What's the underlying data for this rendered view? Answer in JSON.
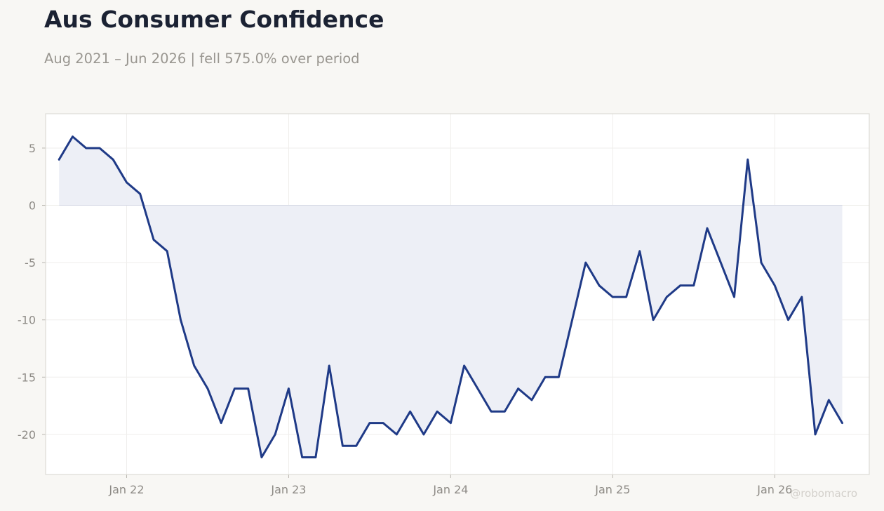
{
  "header": {
    "title": "Aus Consumer Confidence",
    "subtitle": "Aug 2021 – Jun 2026 | fell 575.0% over period"
  },
  "watermark": "@robomacro",
  "colors": {
    "background": "#f8f7f4",
    "plot_background": "#ffffff",
    "line": "#1f3a87",
    "fill": "#eceef5",
    "grid": "#efeeeb",
    "frame": "#dddbd5"
  },
  "chart_data": {
    "type": "area",
    "title": "Aus Consumer Confidence",
    "subtitle": "Aug 2021 – Jun 2026 | fell 575.0% over period",
    "xlabel": "",
    "ylabel": "",
    "x_range": [
      "2021-07-01",
      "2026-08-01"
    ],
    "ylim": [
      -23.5,
      8.0
    ],
    "grid": true,
    "legend": "none",
    "baseline": 0,
    "x_ticks": [
      {
        "date": "2022-01-01",
        "label": "Jan 22"
      },
      {
        "date": "2023-01-01",
        "label": "Jan 23"
      },
      {
        "date": "2024-01-01",
        "label": "Jan 24"
      },
      {
        "date": "2025-01-01",
        "label": "Jan 25"
      },
      {
        "date": "2026-01-01",
        "label": "Jan 26"
      }
    ],
    "y_ticks": [
      5,
      0,
      -5,
      -10,
      -15,
      -20
    ],
    "series": [
      {
        "x": [
          "2021-08",
          "2021-09",
          "2021-10",
          "2021-11",
          "2021-12",
          "2022-01",
          "2022-02",
          "2022-03",
          "2022-04",
          "2022-05",
          "2022-06",
          "2022-07",
          "2022-08",
          "2022-09",
          "2022-10",
          "2022-11",
          "2022-12",
          "2023-01",
          "2023-02",
          "2023-03",
          "2023-04",
          "2023-05",
          "2023-06",
          "2023-07",
          "2023-08",
          "2023-09",
          "2023-10",
          "2023-11",
          "2023-12",
          "2024-01",
          "2024-02",
          "2024-03",
          "2024-04",
          "2024-05",
          "2024-06",
          "2024-07",
          "2024-08",
          "2024-09",
          "2024-10",
          "2024-11",
          "2024-12",
          "2025-01",
          "2025-02",
          "2025-03",
          "2025-04",
          "2025-05",
          "2025-06",
          "2025-07",
          "2025-08",
          "2025-09",
          "2025-10",
          "2025-11",
          "2025-12",
          "2026-01",
          "2026-02",
          "2026-03",
          "2026-04",
          "2026-05",
          "2026-06"
        ],
        "values": [
          4,
          6,
          5,
          5,
          4,
          2,
          1,
          -3,
          -4,
          -10,
          -14,
          -16,
          -19,
          -16,
          -16,
          -22,
          -20,
          -16,
          -22,
          -22,
          -14,
          -21,
          -21,
          -19,
          -19,
          -20,
          -18,
          -20,
          -18,
          -19,
          -14,
          -16,
          -18,
          -18,
          -16,
          -17,
          -15,
          -15,
          -10,
          -5,
          -7,
          -8,
          -8,
          -4,
          -10,
          -8,
          -7,
          -7,
          -2,
          -5,
          -8,
          4,
          -5,
          -7,
          -10,
          -8,
          -20,
          -17,
          -19
        ]
      }
    ]
  }
}
